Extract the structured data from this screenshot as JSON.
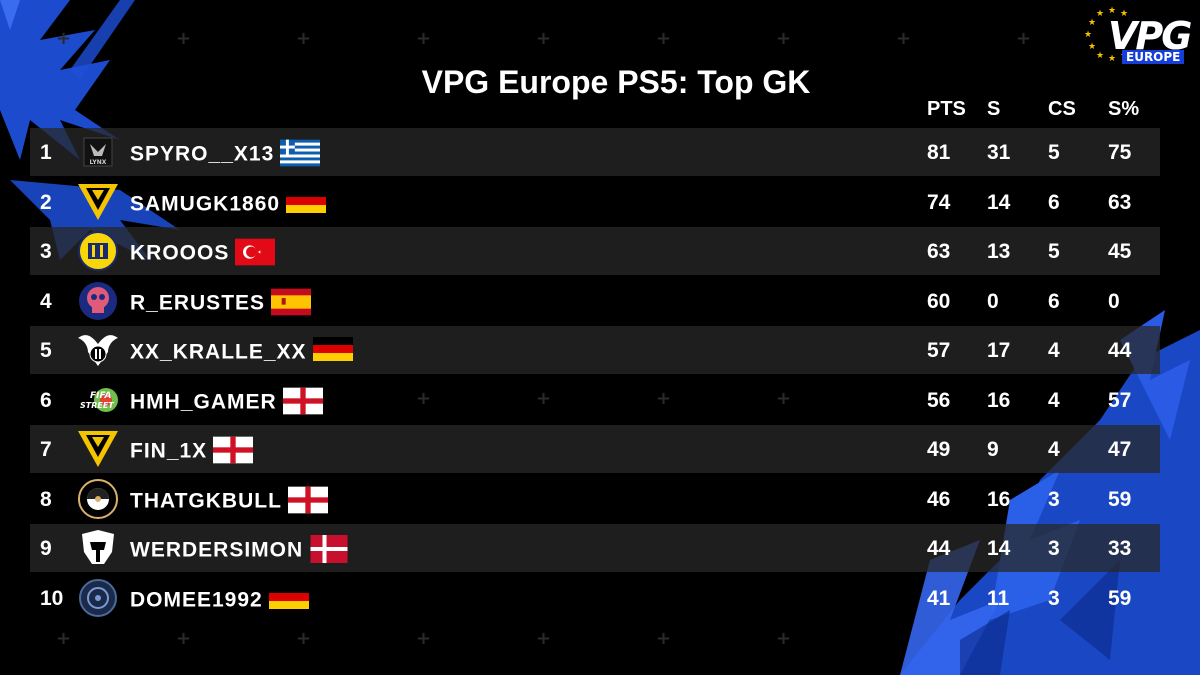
{
  "brand": {
    "logo_text": "VPG",
    "logo_sub": "EUROPE"
  },
  "title": "VPG Europe PS5: Top GK",
  "headers": {
    "pts": "PTS",
    "s": "S",
    "cs": "CS",
    "sp": "S%"
  },
  "rows": [
    {
      "rank": "1",
      "name": "SPYRO__X13",
      "flag": "greece",
      "badge": "lynx-badge",
      "pts": "81",
      "s": "31",
      "cs": "5",
      "sp": "75"
    },
    {
      "rank": "2",
      "name": "SAMUGK1860",
      "flag": "germany",
      "badge": "yellow-v-badge",
      "pts": "74",
      "s": "14",
      "cs": "6",
      "sp": "63"
    },
    {
      "rank": "3",
      "name": "KROOOS",
      "flag": "turkey",
      "badge": "ankaragucu-badge",
      "pts": "63",
      "s": "13",
      "cs": "5",
      "sp": "45"
    },
    {
      "rank": "4",
      "name": "R_ERUSTES",
      "flag": "spain",
      "badge": "pink-skull-badge",
      "pts": "60",
      "s": "0",
      "cs": "6",
      "sp": "0"
    },
    {
      "rank": "5",
      "name": "XX_KRALLE_XX",
      "flag": "germany",
      "badge": "besiktas-eagle-badge",
      "pts": "57",
      "s": "17",
      "cs": "4",
      "sp": "44"
    },
    {
      "rank": "6",
      "name": "HMH_GAMER",
      "flag": "england",
      "badge": "fifa-street-badge",
      "pts": "56",
      "s": "16",
      "cs": "4",
      "sp": "57"
    },
    {
      "rank": "7",
      "name": "FIN_1X",
      "flag": "england",
      "badge": "yellow-v-badge",
      "pts": "49",
      "s": "9",
      "cs": "4",
      "sp": "47"
    },
    {
      "rank": "8",
      "name": "THATGKBULL",
      "flag": "england",
      "badge": "port-vale-badge",
      "pts": "46",
      "s": "16",
      "cs": "3",
      "sp": "59"
    },
    {
      "rank": "9",
      "name": "WERDERSIMON",
      "flag": "denmark",
      "badge": "spartan-helmet-badge",
      "pts": "44",
      "s": "14",
      "cs": "3",
      "sp": "33"
    },
    {
      "rank": "10",
      "name": "DOMEE1992",
      "flag": "germany",
      "badge": "navy-crest-badge",
      "pts": "41",
      "s": "11",
      "cs": "3",
      "sp": "59"
    }
  ],
  "colors": {
    "accent_blue": "#1f4fe0",
    "row_shade": "#282828",
    "logo_star": "#f2c200"
  }
}
